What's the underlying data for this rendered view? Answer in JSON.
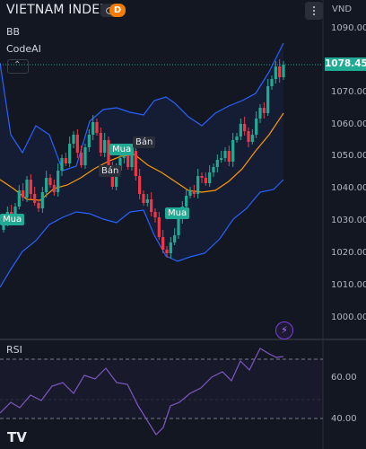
{
  "header": {
    "title": "VIETNAM INDEX",
    "badge": "D",
    "currency": "VND"
  },
  "indicators": {
    "bb_label": "BB",
    "codeai_label": "CodeAI",
    "collapse_glyph": "⌃",
    "rsi_label": "RSI"
  },
  "price_axis": {
    "labels": [
      "1090.00",
      "1070.00",
      "1060.00",
      "1050.00",
      "1040.00",
      "1030.00",
      "1020.00",
      "1010.00",
      "1000.00"
    ],
    "last_price": "1078.45"
  },
  "rsi_axis": {
    "labels": [
      "60.00",
      "40.00"
    ]
  },
  "signals": [
    {
      "label": "Mua",
      "kind": "buy"
    },
    {
      "label": "Mua",
      "kind": "buy"
    },
    {
      "label": "Bán",
      "kind": "sell"
    },
    {
      "label": "Bán",
      "kind": "sell"
    },
    {
      "label": "Mua",
      "kind": "buy"
    }
  ],
  "footer": {
    "logo": "TV"
  },
  "colors": {
    "background": "#131722",
    "up": "#22ab94",
    "down": "#f23645",
    "bb_band": "#2962ff",
    "bb_basis": "#ff9800",
    "rsi_line": "#7e57c2"
  },
  "icons": {
    "visibility": "eye-icon",
    "more": "more-vertical-icon",
    "alert": "lightning-icon",
    "logo": "tradingview-logo-icon"
  }
}
